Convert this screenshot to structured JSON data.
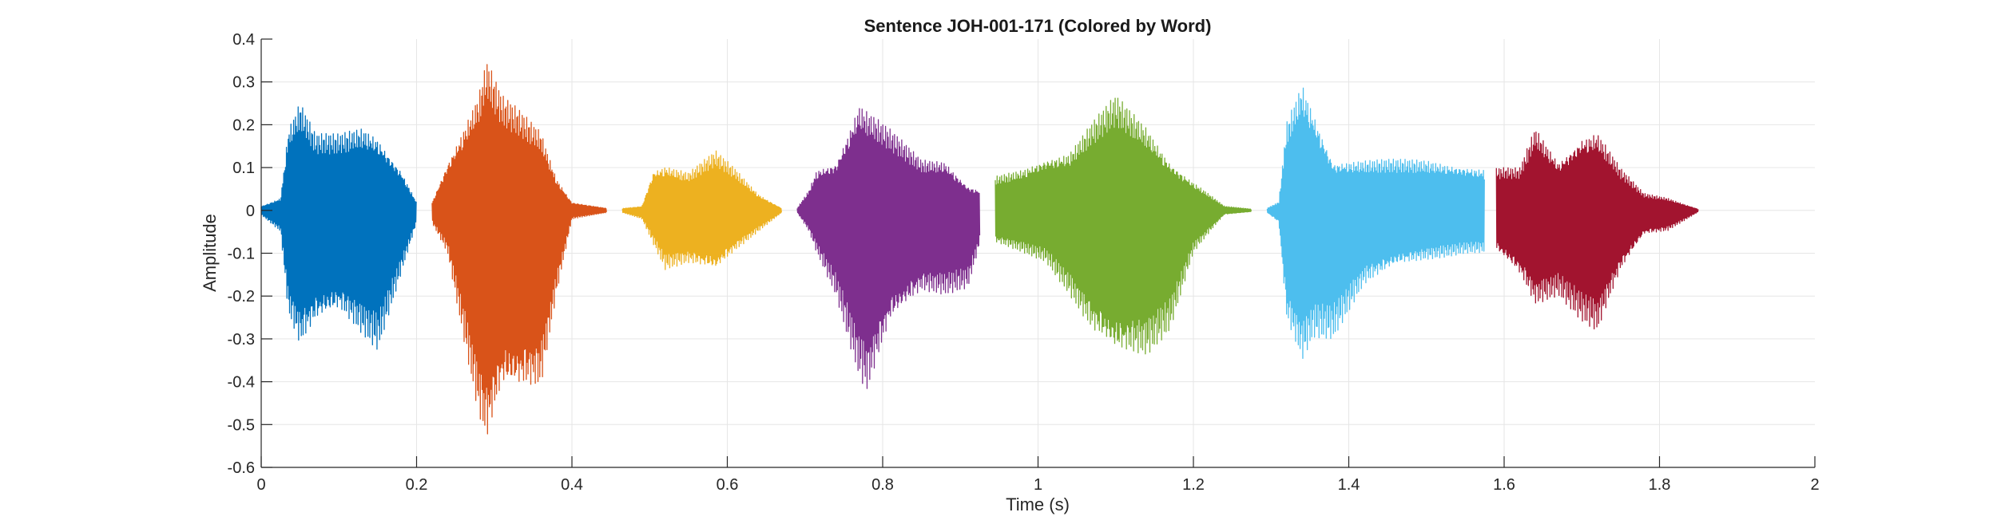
{
  "chart_data": {
    "type": "line",
    "title": "Sentence JOH-001-171 (Colored by Word)",
    "xlabel": "Time (s)",
    "ylabel": "Amplitude",
    "xlim": [
      0,
      2
    ],
    "ylim": [
      -0.6,
      0.4
    ],
    "xticks": [
      0,
      0.2,
      0.4,
      0.6,
      0.8,
      1,
      1.2,
      1.4,
      1.6,
      1.8,
      2
    ],
    "xtick_labels": [
      "0",
      "0.2",
      "0.4",
      "0.6",
      "0.8",
      "1",
      "1.2",
      "1.4",
      "1.6",
      "1.8",
      "2"
    ],
    "yticks": [
      -0.6,
      -0.5,
      -0.4,
      -0.3,
      -0.2,
      -0.1,
      0,
      0.1,
      0.2,
      0.3,
      0.4
    ],
    "ytick_labels": [
      "-0.6",
      "-0.5",
      "-0.4",
      "-0.3",
      "-0.2",
      "-0.1",
      "0",
      "0.1",
      "0.2",
      "0.3",
      "0.4"
    ],
    "grid": true,
    "legend": "none",
    "series": [
      {
        "start": 0.0,
        "end": 0.2,
        "color": "#0072BD",
        "envelope": [
          [
            0.0,
            0.01,
            -0.01
          ],
          [
            0.025,
            0.03,
            -0.05
          ],
          [
            0.035,
            0.2,
            -0.25
          ],
          [
            0.05,
            0.26,
            -0.33
          ],
          [
            0.07,
            0.18,
            -0.28
          ],
          [
            0.1,
            0.18,
            -0.25
          ],
          [
            0.13,
            0.2,
            -0.3
          ],
          [
            0.15,
            0.18,
            -0.33
          ],
          [
            0.18,
            0.1,
            -0.15
          ],
          [
            0.2,
            0.02,
            -0.03
          ]
        ]
      },
      {
        "start": 0.22,
        "end": 0.445,
        "color": "#D95319",
        "envelope": [
          [
            0.22,
            0.02,
            -0.03
          ],
          [
            0.24,
            0.12,
            -0.1
          ],
          [
            0.26,
            0.2,
            -0.3
          ],
          [
            0.28,
            0.28,
            -0.5
          ],
          [
            0.29,
            0.36,
            -0.57
          ],
          [
            0.31,
            0.27,
            -0.45
          ],
          [
            0.33,
            0.24,
            -0.45
          ],
          [
            0.36,
            0.19,
            -0.43
          ],
          [
            0.38,
            0.08,
            -0.2
          ],
          [
            0.4,
            0.02,
            -0.02
          ],
          [
            0.445,
            0.005,
            -0.005
          ]
        ]
      },
      {
        "start": 0.465,
        "end": 0.67,
        "color": "#EDB120",
        "envelope": [
          [
            0.465,
            0.005,
            -0.005
          ],
          [
            0.49,
            0.01,
            -0.02
          ],
          [
            0.505,
            0.1,
            -0.08
          ],
          [
            0.52,
            0.11,
            -0.14
          ],
          [
            0.55,
            0.09,
            -0.13
          ],
          [
            0.585,
            0.14,
            -0.15
          ],
          [
            0.61,
            0.1,
            -0.1
          ],
          [
            0.64,
            0.04,
            -0.05
          ],
          [
            0.67,
            0.005,
            -0.005
          ]
        ]
      },
      {
        "start": 0.69,
        "end": 0.925,
        "color": "#7E2F8E",
        "envelope": [
          [
            0.69,
            0.005,
            -0.005
          ],
          [
            0.705,
            0.05,
            -0.05
          ],
          [
            0.715,
            0.1,
            -0.1
          ],
          [
            0.74,
            0.12,
            -0.2
          ],
          [
            0.77,
            0.26,
            -0.4
          ],
          [
            0.78,
            0.24,
            -0.44
          ],
          [
            0.81,
            0.19,
            -0.28
          ],
          [
            0.85,
            0.12,
            -0.2
          ],
          [
            0.88,
            0.12,
            -0.2
          ],
          [
            0.91,
            0.06,
            -0.18
          ],
          [
            0.925,
            0.05,
            -0.08
          ]
        ]
      },
      {
        "start": 0.945,
        "end": 1.275,
        "color": "#77AC30",
        "envelope": [
          [
            0.945,
            0.08,
            -0.08
          ],
          [
            0.98,
            0.1,
            -0.1
          ],
          [
            1.01,
            0.13,
            -0.12
          ],
          [
            1.04,
            0.14,
            -0.2
          ],
          [
            1.07,
            0.21,
            -0.3
          ],
          [
            1.1,
            0.27,
            -0.36
          ],
          [
            1.14,
            0.2,
            -0.35
          ],
          [
            1.17,
            0.12,
            -0.28
          ],
          [
            1.2,
            0.07,
            -0.1
          ],
          [
            1.24,
            0.01,
            -0.01
          ],
          [
            1.275,
            0.003,
            -0.003
          ]
        ]
      },
      {
        "start": 1.295,
        "end": 1.575,
        "color": "#4DBEEE",
        "envelope": [
          [
            1.295,
            0.005,
            -0.005
          ],
          [
            1.31,
            0.02,
            -0.03
          ],
          [
            1.32,
            0.21,
            -0.27
          ],
          [
            1.34,
            0.31,
            -0.36
          ],
          [
            1.355,
            0.24,
            -0.3
          ],
          [
            1.38,
            0.12,
            -0.3
          ],
          [
            1.42,
            0.12,
            -0.18
          ],
          [
            1.46,
            0.12,
            -0.14
          ],
          [
            1.5,
            0.12,
            -0.12
          ],
          [
            1.55,
            0.11,
            -0.1
          ],
          [
            1.575,
            0.1,
            -0.1
          ]
        ]
      },
      {
        "start": 1.59,
        "end": 1.85,
        "color": "#A2142F",
        "envelope": [
          [
            1.59,
            0.1,
            -0.1
          ],
          [
            1.62,
            0.1,
            -0.16
          ],
          [
            1.64,
            0.2,
            -0.23
          ],
          [
            1.67,
            0.12,
            -0.2
          ],
          [
            1.7,
            0.18,
            -0.26
          ],
          [
            1.72,
            0.19,
            -0.29
          ],
          [
            1.75,
            0.1,
            -0.15
          ],
          [
            1.78,
            0.04,
            -0.06
          ],
          [
            1.81,
            0.03,
            -0.05
          ],
          [
            1.85,
            0.003,
            -0.003
          ]
        ]
      }
    ]
  }
}
